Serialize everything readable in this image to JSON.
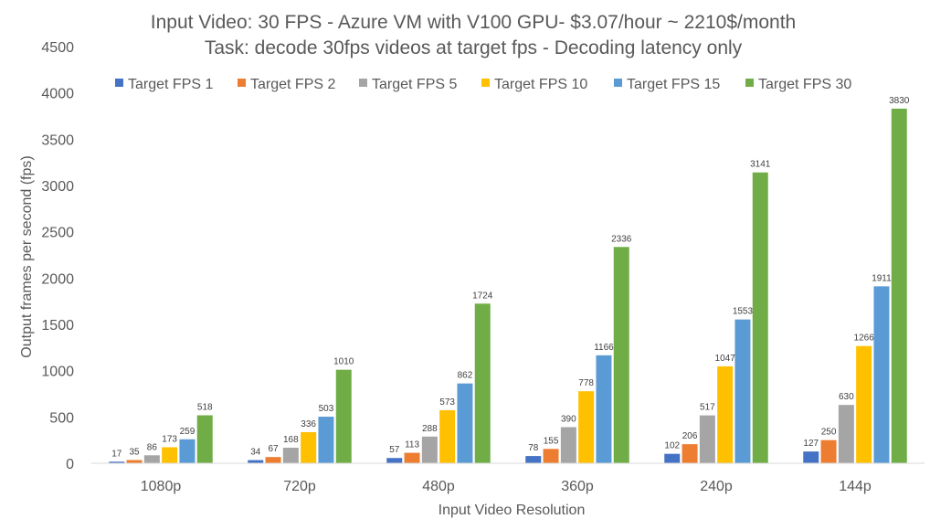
{
  "chart_data": {
    "type": "bar",
    "title": "Input Video: 30 FPS - Azure VM with V100 GPU- $3.07/hour ~ 2210$/month",
    "subtitle": "Task: decode 30fps videos at target fps -  Decoding latency only",
    "xlabel": "Input Video Resolution",
    "ylabel": "Output frames per second (fps)",
    "ylim": [
      0,
      4500
    ],
    "yticks": [
      0,
      500,
      1000,
      1500,
      2000,
      2500,
      3000,
      3500,
      4000,
      4500
    ],
    "grid": false,
    "legend_position": "top",
    "categories": [
      "1080p",
      "720p",
      "480p",
      "360p",
      "240p",
      "144p"
    ],
    "series": [
      {
        "name": "Target FPS 1",
        "color": "#4472C4",
        "values": [
          17,
          34,
          57,
          78,
          102,
          127
        ]
      },
      {
        "name": "Target FPS 2",
        "color": "#ED7D31",
        "values": [
          35,
          67,
          113,
          155,
          206,
          250
        ]
      },
      {
        "name": "Target FPS 5",
        "color": "#A5A5A5",
        "values": [
          86,
          168,
          288,
          390,
          517,
          630
        ]
      },
      {
        "name": "Target FPS 10",
        "color": "#FFC000",
        "values": [
          173,
          336,
          573,
          778,
          1047,
          1266
        ]
      },
      {
        "name": "Target FPS 15",
        "color": "#5B9BD5",
        "values": [
          259,
          503,
          862,
          1166,
          1553,
          1911
        ]
      },
      {
        "name": "Target FPS 30",
        "color": "#70AD47",
        "values": [
          518,
          1010,
          1724,
          2336,
          3141,
          3830
        ]
      }
    ]
  }
}
